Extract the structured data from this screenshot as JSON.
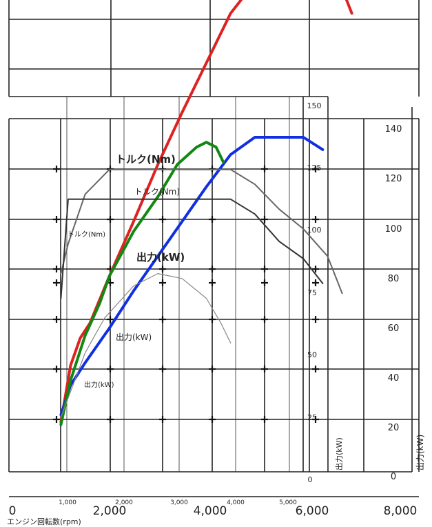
{
  "chart_data": {
    "type": "line",
    "xlabel": "エンジン回転数(rpm)",
    "x_axis_main": {
      "ticks": [
        "0",
        "2,000",
        "4,000",
        "6,000",
        "8,000"
      ],
      "range": [
        0,
        8000
      ]
    },
    "x_axis_small": {
      "ticks": [
        "1,000",
        "2,000",
        "3,000",
        "4,000",
        "5,000"
      ],
      "range": [
        0,
        5000
      ]
    },
    "y_axis_right": {
      "label": "出力(kW)",
      "ticks": [
        "0",
        "20",
        "40",
        "60",
        "80",
        "100",
        "120",
        "140"
      ],
      "range": [
        0,
        140
      ]
    },
    "y_axis_small": {
      "label": "出力(kW)",
      "ticks": [
        "0",
        "25",
        "50",
        "75",
        "100",
        "125",
        "150"
      ],
      "range": [
        0,
        150
      ]
    },
    "torque_labels": [
      "トルク(Nm)",
      "トルク(Nm)",
      "トルク(Nm)"
    ],
    "power_labels": [
      "出力(kW)",
      "出力(kW)",
      "出力(kW)"
    ],
    "series": [
      {
        "color": "#dd2222",
        "kind": "power",
        "x": [
          1000,
          1200,
          1400,
          1600,
          2000,
          2500,
          3000,
          3500,
          4000,
          4500,
          5500,
          6500,
          7000
        ],
        "y": [
          20,
          43,
          54,
          60,
          79,
          101,
          124,
          145,
          165,
          185,
          210,
          210,
          185
        ]
      },
      {
        "color": "#1030e0",
        "kind": "power",
        "x": [
          1000,
          1200,
          1500,
          2000,
          2500,
          3000,
          3500,
          4000,
          4500,
          5000,
          5500,
          6000,
          6400
        ],
        "y": [
          23,
          35,
          44,
          58,
          73,
          87,
          101,
          115,
          128,
          135,
          135,
          135,
          130
        ]
      },
      {
        "color": "#118811",
        "kind": "power",
        "x": [
          1000,
          1200,
          1500,
          1800,
          2000,
          2500,
          3000,
          3400,
          3800,
          4000,
          4200,
          4350
        ],
        "y": [
          19,
          37,
          55,
          68,
          79,
          97,
          111,
          124,
          131,
          133,
          131,
          125
        ]
      },
      {
        "color": "#666666",
        "kind": "torque",
        "x": [
          1000,
          1150,
          1500,
          2000,
          3000,
          4000,
          4500,
          5000,
          5500,
          6000,
          6500,
          6800
        ],
        "y": [
          80,
          92,
          112,
          122,
          122,
          122,
          122,
          116,
          106,
          98,
          87,
          72
        ]
      },
      {
        "color": "#333333",
        "kind": "torque",
        "x": [
          1000,
          1150,
          2000,
          3000,
          4000,
          4500,
          5000,
          5500,
          6000,
          6400
        ],
        "y": [
          70,
          110,
          110,
          110,
          110,
          110,
          104,
          93,
          86,
          76
        ]
      },
      {
        "color": "#888888",
        "kind": "torque",
        "x": [
          1000,
          1500,
          1900,
          2500,
          3000,
          3500,
          4000,
          4300,
          4500
        ],
        "y": [
          22,
          48,
          62,
          75,
          80,
          78,
          70,
          60,
          52
        ]
      }
    ]
  }
}
